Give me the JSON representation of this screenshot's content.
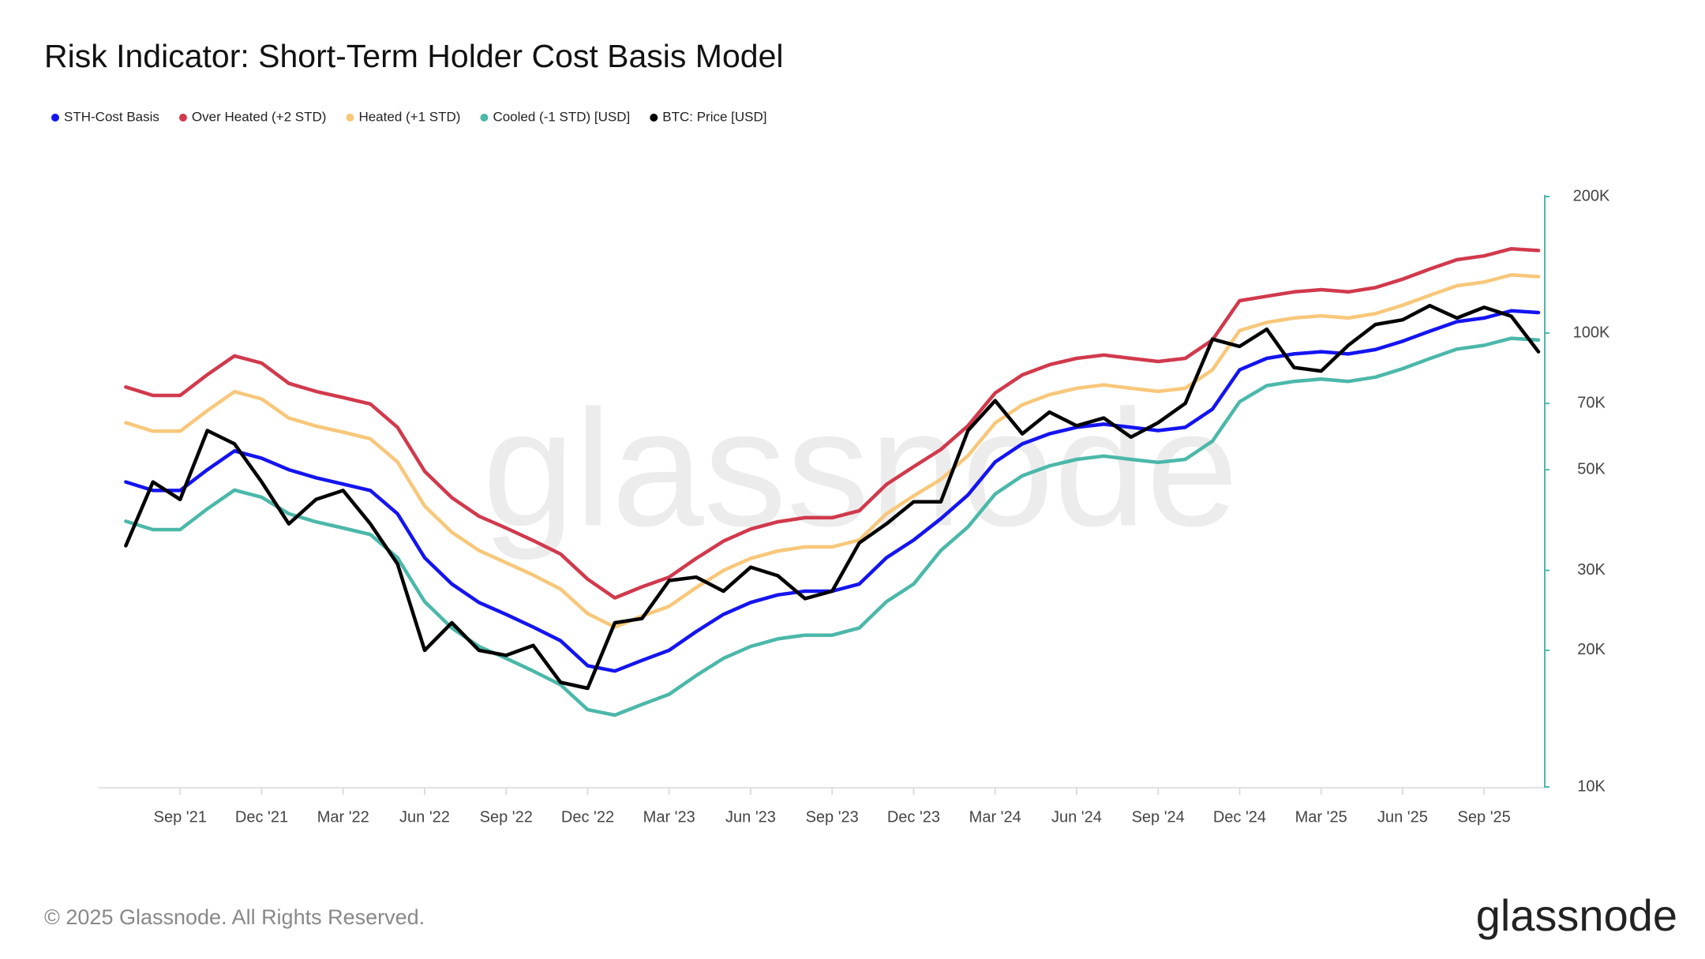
{
  "chart_data": {
    "type": "line",
    "title": "Risk Indicator: Short-Term Holder Cost Basis Model",
    "watermark": "glassnode",
    "footer": "© 2025 Glassnode. All Rights Reserved.",
    "logo": "glassnode",
    "legend": "top-left",
    "log_y": true,
    "grid": false,
    "x": [
      "2021-07",
      "2021-08",
      "2021-09",
      "2021-10",
      "2021-11",
      "2021-12",
      "2022-01",
      "2022-02",
      "2022-03",
      "2022-04",
      "2022-05",
      "2022-06",
      "2022-07",
      "2022-08",
      "2022-09",
      "2022-10",
      "2022-11",
      "2022-12",
      "2023-01",
      "2023-02",
      "2023-03",
      "2023-04",
      "2023-05",
      "2023-06",
      "2023-07",
      "2023-08",
      "2023-09",
      "2023-10",
      "2023-11",
      "2023-12",
      "2024-01",
      "2024-02",
      "2024-03",
      "2024-04",
      "2024-05",
      "2024-06",
      "2024-07",
      "2024-08",
      "2024-09",
      "2024-10",
      "2024-11",
      "2024-12",
      "2025-01",
      "2025-02",
      "2025-03",
      "2025-04",
      "2025-05",
      "2025-06",
      "2025-07",
      "2025-08",
      "2025-09",
      "2025-10",
      "2025-11"
    ],
    "xlim": [
      "2021-06",
      "2025-11"
    ],
    "xticks": [
      {
        "value": "2021-09",
        "label": "Sep '21"
      },
      {
        "value": "2021-12",
        "label": "Dec '21"
      },
      {
        "value": "2022-03",
        "label": "Mar '22"
      },
      {
        "value": "2022-06",
        "label": "Jun '22"
      },
      {
        "value": "2022-09",
        "label": "Sep '22"
      },
      {
        "value": "2022-12",
        "label": "Dec '22"
      },
      {
        "value": "2023-03",
        "label": "Mar '23"
      },
      {
        "value": "2023-06",
        "label": "Jun '23"
      },
      {
        "value": "2023-09",
        "label": "Sep '23"
      },
      {
        "value": "2023-12",
        "label": "Dec '23"
      },
      {
        "value": "2024-03",
        "label": "Mar '24"
      },
      {
        "value": "2024-06",
        "label": "Jun '24"
      },
      {
        "value": "2024-09",
        "label": "Sep '24"
      },
      {
        "value": "2024-12",
        "label": "Dec '24"
      },
      {
        "value": "2025-03",
        "label": "Mar '25"
      },
      {
        "value": "2025-06",
        "label": "Jun '25"
      },
      {
        "value": "2025-09",
        "label": "Sep '25"
      }
    ],
    "ylim": [
      10000,
      200000
    ],
    "yticks": [
      {
        "value": 10000,
        "label": "10K"
      },
      {
        "value": 20000,
        "label": "20K"
      },
      {
        "value": 30000,
        "label": "30K"
      },
      {
        "value": 50000,
        "label": "50K"
      },
      {
        "value": 70000,
        "label": "70K"
      },
      {
        "value": 100000,
        "label": "100K"
      },
      {
        "value": 200000,
        "label": "200K"
      }
    ],
    "series": [
      {
        "name": "STH-Cost Basis",
        "color": "#1414f0",
        "values": [
          47000,
          45000,
          45000,
          50000,
          55000,
          53000,
          50000,
          48000,
          46500,
          45000,
          40000,
          32000,
          28000,
          25500,
          24000,
          22500,
          21000,
          18500,
          18000,
          19000,
          20000,
          22000,
          24000,
          25500,
          26500,
          27000,
          27000,
          28000,
          32000,
          35000,
          39000,
          44000,
          52000,
          57000,
          60000,
          62000,
          63000,
          62000,
          61000,
          62000,
          68000,
          83000,
          88000,
          90000,
          91000,
          90000,
          92000,
          96000,
          101000,
          106000,
          108000,
          112000,
          111000
        ]
      },
      {
        "name": "Over Heated (+2 STD)",
        "color": "#d1394c",
        "values": [
          76100,
          72900,
          72900,
          81000,
          89100,
          85900,
          77500,
          74400,
          72100,
          69800,
          62000,
          49600,
          43400,
          39500,
          37200,
          34900,
          32600,
          28700,
          26100,
          27600,
          29000,
          31900,
          34800,
          37000,
          38400,
          39200,
          39200,
          40600,
          46400,
          50800,
          55400,
          62500,
          73800,
          80900,
          85200,
          88000,
          89500,
          88000,
          86600,
          88000,
          96600,
          117900,
          120600,
          123300,
          124700,
          123300,
          126000,
          131500,
          138400,
          145200,
          148000,
          153400,
          152100
        ]
      },
      {
        "name": "Heated (+1 STD)",
        "color": "#f8c77a",
        "values": [
          63500,
          60800,
          60800,
          67500,
          74300,
          71600,
          65000,
          62400,
          60500,
          58500,
          52000,
          41600,
          36400,
          33200,
          31200,
          29300,
          27300,
          24100,
          22500,
          23800,
          25000,
          27500,
          30000,
          31900,
          33100,
          33800,
          33800,
          35000,
          40000,
          43800,
          47600,
          53700,
          63400,
          69500,
          73200,
          75600,
          76900,
          75600,
          74400,
          75600,
          83000,
          101300,
          105600,
          108000,
          109200,
          108000,
          110400,
          115200,
          121200,
          127200,
          129600,
          134400,
          133200
        ]
      },
      {
        "name": "Cooled (-1 STD) [USD]",
        "color": "#4bb8a9",
        "values": [
          38500,
          36900,
          36900,
          41000,
          45100,
          43500,
          40000,
          38400,
          37200,
          36000,
          32000,
          25600,
          22400,
          20400,
          19200,
          18000,
          16800,
          14800,
          14400,
          15200,
          16000,
          17600,
          19200,
          20400,
          21200,
          21600,
          21600,
          22400,
          25600,
          28000,
          33200,
          37400,
          44200,
          48500,
          51000,
          52700,
          53600,
          52700,
          51900,
          52700,
          57800,
          70600,
          76600,
          78300,
          79200,
          78300,
          80000,
          83500,
          87900,
          92200,
          94000,
          97400,
          96600
        ]
      },
      {
        "name": "BTC: Price [USD]",
        "color": "#000000",
        "values": [
          34000,
          47000,
          43000,
          61000,
          57000,
          47000,
          38000,
          43000,
          45000,
          38000,
          31000,
          20000,
          23000,
          20000,
          19500,
          20500,
          17000,
          16500,
          23000,
          23500,
          28500,
          29000,
          27000,
          30500,
          29200,
          26000,
          27000,
          34500,
          38000,
          42500,
          42500,
          61000,
          71000,
          60000,
          67000,
          62500,
          65000,
          59000,
          63500,
          70000,
          97000,
          93500,
          102000,
          84000,
          82500,
          94000,
          104500,
          107000,
          115000,
          108000,
          114000,
          109000,
          91000
        ]
      }
    ]
  }
}
